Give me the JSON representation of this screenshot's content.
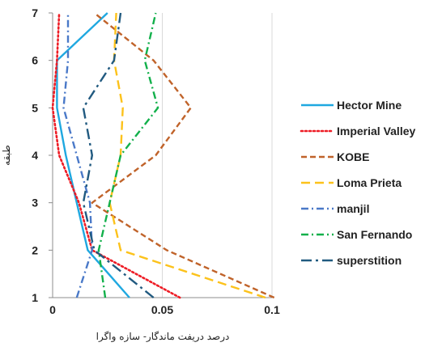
{
  "chart_data": {
    "type": "line",
    "title": "",
    "xlabel": "درصد دریفت ماندگار- سازه واگرا",
    "ylabel": "طبقه",
    "xlim": [
      0,
      0.1
    ],
    "ylim": [
      1,
      7
    ],
    "x_ticks": [
      "0",
      "0.05",
      "0.1"
    ],
    "y_ticks": [
      "1",
      "2",
      "3",
      "4",
      "5",
      "6",
      "7"
    ],
    "grid": "vertical",
    "legend_position": "right",
    "series": [
      {
        "name": "Hector Mine",
        "color": "#1fa8e0",
        "dash": "solid",
        "x": [
          0.035,
          0.016,
          0.011,
          0.006,
          0.002,
          0.002,
          0.025
        ],
        "y": [
          1,
          2,
          3,
          4,
          5,
          6,
          7
        ]
      },
      {
        "name": "Imperial Valley",
        "color": "#ee1c25",
        "dash": "dotted",
        "x": [
          0.058,
          0.018,
          0.012,
          0.003,
          0.0,
          0.002,
          0.003
        ],
        "y": [
          1,
          2,
          3,
          4,
          5,
          6,
          7
        ]
      },
      {
        "name": "KOBE",
        "color": "#c0632a",
        "dash": "dash",
        "x": [
          0.101,
          0.052,
          0.018,
          0.047,
          0.063,
          0.046,
          0.019
        ],
        "y": [
          1,
          2,
          3,
          4,
          5,
          6,
          7
        ]
      },
      {
        "name": "Loma Prieta",
        "color": "#fcc21b",
        "dash": "longdash",
        "x": [
          0.097,
          0.031,
          0.026,
          0.031,
          0.032,
          0.028,
          0.029
        ],
        "y": [
          1,
          2,
          3,
          4,
          5,
          6,
          7
        ]
      },
      {
        "name": "manjil",
        "color": "#4a79c8",
        "dash": "dashdot",
        "x": [
          0.011,
          0.018,
          0.017,
          0.011,
          0.005,
          0.007,
          0.007
        ],
        "y": [
          1,
          2,
          3,
          4,
          5,
          6,
          7
        ]
      },
      {
        "name": "San Fernando",
        "color": "#12b04b",
        "dash": "dashdot",
        "x": [
          0.024,
          0.021,
          0.026,
          0.031,
          0.048,
          0.042,
          0.047
        ],
        "y": [
          1,
          2,
          3,
          4,
          5,
          6,
          7
        ]
      },
      {
        "name": "superstition",
        "color": "#215a80",
        "dash": "longdashdot",
        "x": [
          0.046,
          0.019,
          0.014,
          0.018,
          0.014,
          0.028,
          0.031
        ],
        "y": [
          1,
          2,
          3,
          4,
          5,
          6,
          7
        ]
      }
    ]
  }
}
